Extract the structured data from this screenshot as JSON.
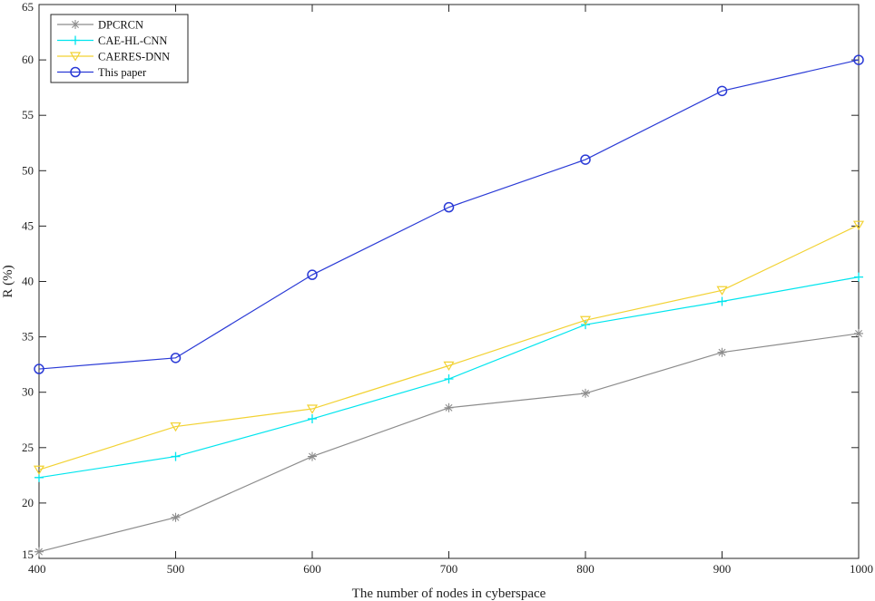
{
  "chart_data": {
    "type": "line",
    "title": "",
    "xlabel": "The number of nodes in cyberspace",
    "ylabel": "R (%)",
    "xlim": [
      400,
      1000
    ],
    "ylim": [
      15,
      65
    ],
    "xticks": [
      400,
      500,
      600,
      700,
      800,
      900,
      1000
    ],
    "yticks": [
      15,
      20,
      25,
      30,
      35,
      40,
      45,
      50,
      55,
      60,
      65
    ],
    "grid": false,
    "legend_position": "top-left",
    "x": [
      400,
      500,
      600,
      700,
      800,
      900,
      1000
    ],
    "series": [
      {
        "name": "DPCRCN",
        "color": "#8c8c8c",
        "marker": "asterisk",
        "values": [
          15.6,
          18.7,
          24.2,
          28.6,
          29.9,
          33.6,
          35.3
        ]
      },
      {
        "name": "CAE-HL-CNN",
        "color": "#00e5ee",
        "marker": "plus",
        "values": [
          22.3,
          24.2,
          27.6,
          31.2,
          36.1,
          38.2,
          40.4
        ]
      },
      {
        "name": "CAERES-DNN",
        "color": "#f2d233",
        "marker": "triangle-down",
        "values": [
          23.0,
          26.9,
          28.5,
          32.4,
          36.5,
          39.2,
          45.1
        ]
      },
      {
        "name": "This paper",
        "color": "#2a3ad6",
        "marker": "circle",
        "values": [
          32.1,
          33.1,
          40.6,
          46.7,
          51.0,
          57.2,
          60.0
        ]
      }
    ]
  }
}
